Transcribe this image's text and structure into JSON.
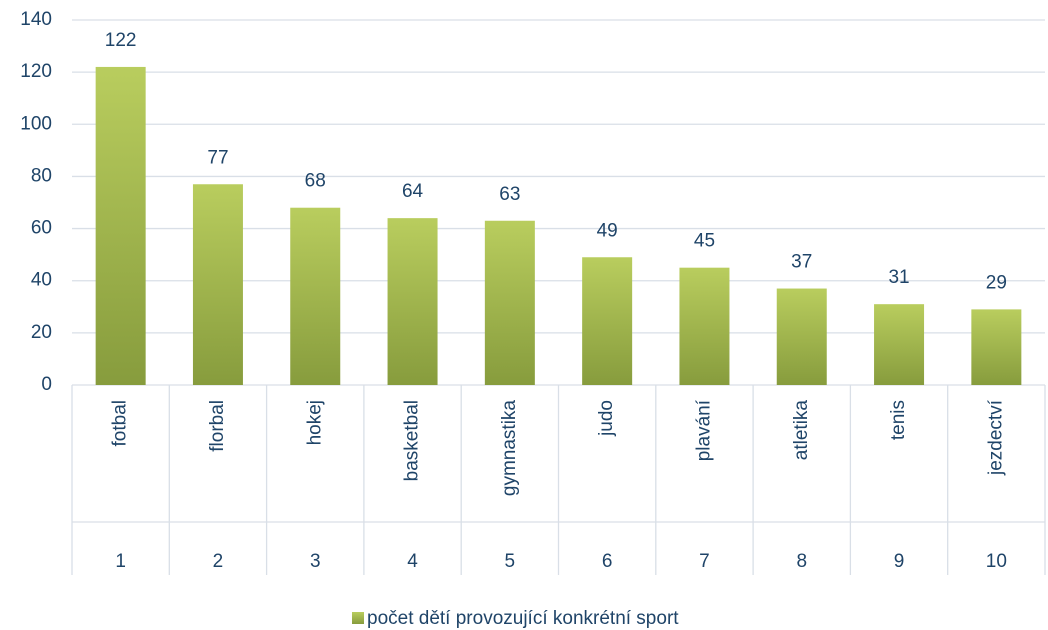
{
  "chart_data": {
    "type": "bar",
    "categories": [
      "fotbal",
      "florbal",
      "hokej",
      "basketbal",
      "gymnastika",
      "judo",
      "plavání",
      "atletika",
      "tenis",
      "jezdectví"
    ],
    "category_numbers": [
      1,
      2,
      3,
      4,
      5,
      6,
      7,
      8,
      9,
      10
    ],
    "series": [
      {
        "name": "počet dětí provozující konkrétní sport",
        "color": "#9fb64a",
        "values": [
          122,
          77,
          68,
          64,
          63,
          49,
          45,
          37,
          31,
          29
        ]
      }
    ],
    "ylim": [
      0,
      140
    ],
    "yticks": [
      0,
      20,
      40,
      60,
      80,
      100,
      120,
      140
    ],
    "grid": true,
    "legend": "bottom"
  }
}
